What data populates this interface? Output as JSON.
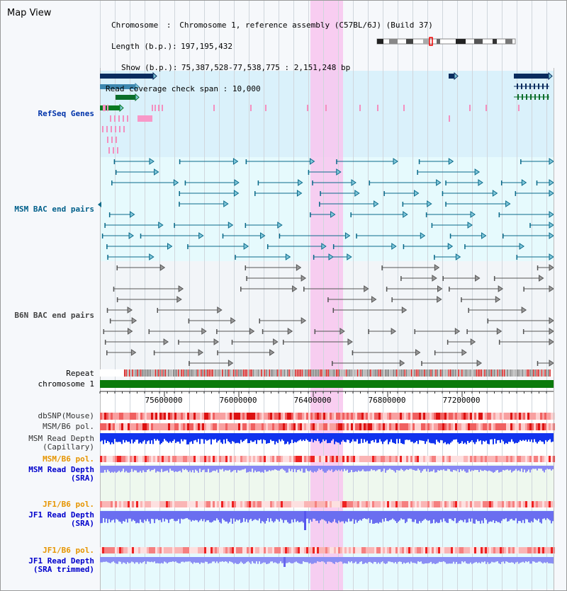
{
  "app": {
    "title": "Map View"
  },
  "info": {
    "chromosome_key": "Chromosome",
    "chromosome_val": "Chromosome 1, reference assembly (C57BL/6J) (Build 37)",
    "length_key": "Length (b.p.)",
    "length_val": "197,195,432",
    "show_key": "Show (b.p.)",
    "show_val": "75,387,528-77,538,775 : 2,151,248 bp",
    "span_key": "Read coverage check span",
    "span_val": "10,000"
  },
  "tracks": {
    "refseq": {
      "label": "RefSeq Genes",
      "color": "#0033aa"
    },
    "msm_bac": {
      "label": "MSM BAC end pairs",
      "color": "#005f8a"
    },
    "b6n_bac": {
      "label": "B6N BAC end pairs",
      "color": "#444444"
    },
    "repeat": {
      "label": "Repeat"
    },
    "chromosome": {
      "label": "chromosome 1"
    },
    "dbsnp": {
      "label": "dbSNP(Mouse)"
    },
    "msm_b6_pol_1": {
      "label": "MSM/B6 pol."
    },
    "msm_depth_cap": {
      "label_line1": "MSM Read Depth",
      "label_line2": "(Capillary)"
    },
    "msm_b6_pol_2": {
      "label": "MSM/B6 pol.",
      "color": "#e69500"
    },
    "msm_depth_sra": {
      "label_line1": "MSM Read Depth",
      "label_line2": "(SRA)",
      "color": "#0000cc"
    },
    "jf1_b6_pol_1": {
      "label": "JF1/B6 pol.",
      "color": "#e69500"
    },
    "jf1_depth_sra": {
      "label_line1": "JF1 Read Depth",
      "label_line2": "(SRA)",
      "color": "#0000cc"
    },
    "jf1_b6_pol_2": {
      "label": "JF1/B6 pol.",
      "color": "#e69500"
    },
    "jf1_depth_trim": {
      "label_line1": "JF1 Read Depth",
      "label_line2": "(SRA trimmed)",
      "color": "#0000cc"
    }
  },
  "axis": {
    "ticks": [
      "75600000",
      "76000000",
      "76400000",
      "76800000",
      "77200000"
    ]
  },
  "highlight": {
    "color": "#f8c6ee"
  }
}
